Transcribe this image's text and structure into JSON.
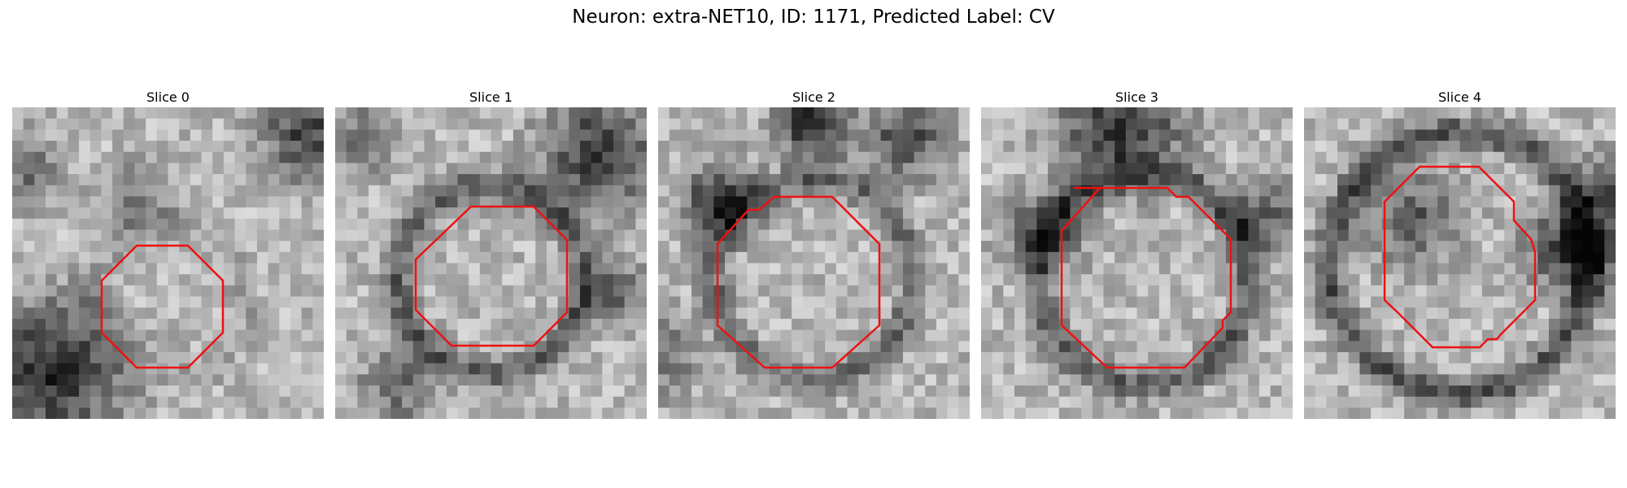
{
  "figure": {
    "title": "Neuron: extra-NET10, ID: 1171, Predicted Label: CV"
  },
  "panels": [
    {
      "title": "Slice 0",
      "icon": "grayscale-microscopy-slice",
      "outline_color": "#ee1111"
    },
    {
      "title": "Slice 1",
      "icon": "grayscale-microscopy-slice",
      "outline_color": "#ee1111"
    },
    {
      "title": "Slice 2",
      "icon": "grayscale-microscopy-slice",
      "outline_color": "#ee1111"
    },
    {
      "title": "Slice 3",
      "icon": "grayscale-microscopy-slice",
      "outline_color": "#ee1111"
    },
    {
      "title": "Slice 4",
      "icon": "grayscale-microscopy-slice",
      "outline_color": "#ee1111"
    }
  ]
}
